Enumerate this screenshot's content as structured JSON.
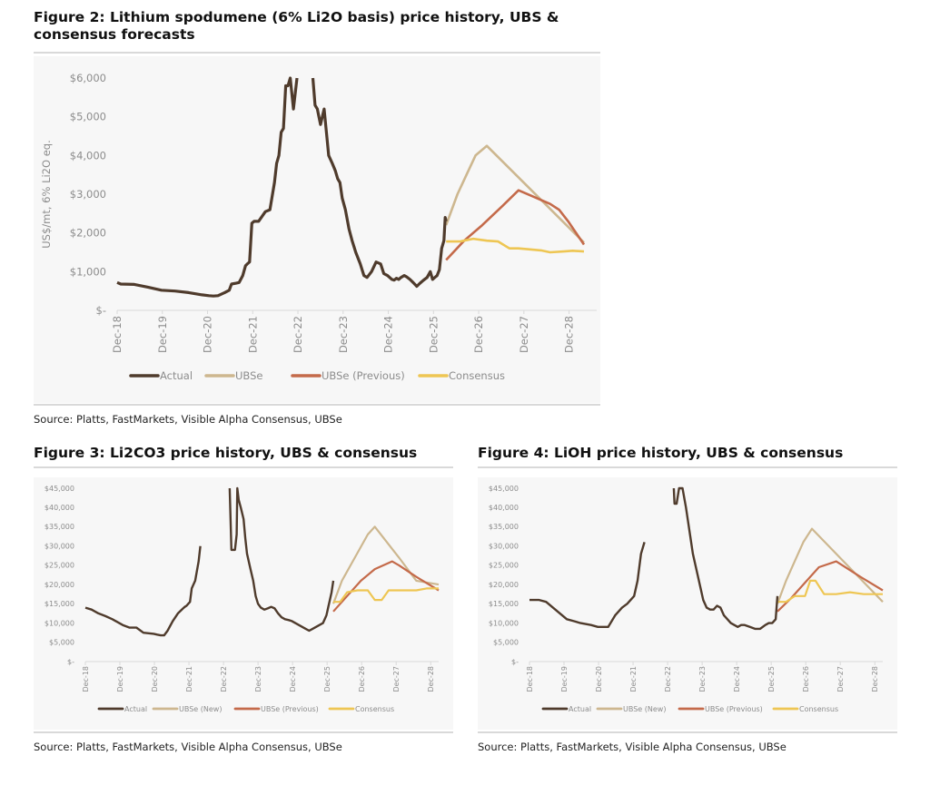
{
  "figures": [
    {
      "title": "Figure 2: Lithium spodumene (6% Li2O basis) price history, UBS & consensus forecasts",
      "source": "Source: Platts, FastMarkets, Visible Alpha Consensus, UBSe"
    },
    {
      "title": "Figure 3: Li2CO3 price history, UBS & consensus",
      "source": "Source: Platts, FastMarkets, Visible Alpha Consensus, UBSe"
    },
    {
      "title": "Figure 4: LiOH price history, UBS & consensus",
      "source": "Source: Platts, FastMarkets, Visible Alpha Consensus, UBSe"
    }
  ],
  "chart_data": [
    {
      "type": "line",
      "title": "Figure 2: Lithium spodumene (6% Li2O basis) price history, UBS & consensus forecasts",
      "xlabel": "",
      "ylabel": "US$/mt, 6% Li2O eq.",
      "ylim": [
        0,
        6000
      ],
      "xlim": [
        2018.92,
        2029.25
      ],
      "yticks": [
        0,
        1000,
        2000,
        3000,
        4000,
        5000,
        6000
      ],
      "ytick_labels": [
        "$-",
        "$1,000",
        "$2,000",
        "$3,000",
        "$4,000",
        "$5,000",
        "$6,000"
      ],
      "xtick_labels": [
        "Dec-18",
        "Dec-19",
        "Dec-20",
        "Dec-21",
        "Dec-22",
        "Dec-23",
        "Dec-24",
        "Dec-25",
        "Dec-26",
        "Dec-27",
        "Dec-28"
      ],
      "grid": false,
      "legend": "bottom",
      "series": [
        {
          "name": "Actual",
          "color": "#4f3b2c",
          "x": [
            2018.92,
            2019.0,
            2019.3,
            2019.6,
            2019.9,
            2020.2,
            2020.5,
            2020.8,
            2020.95,
            2021.05,
            2021.15,
            2021.3,
            2021.4,
            2021.45,
            2021.55,
            2021.62,
            2021.7,
            2021.76,
            2021.8,
            2021.85,
            2021.9,
            2021.95,
            2022.05,
            2022.2,
            2022.3,
            2022.4,
            2022.45,
            2022.5,
            2022.55,
            2022.6,
            2022.65,
            2022.7,
            2022.75,
            2022.82,
            2022.9,
            2023.0,
            2023.25,
            2023.3,
            2023.35,
            2023.42,
            2023.5,
            2023.6,
            2023.68,
            2023.75,
            2023.8,
            2023.85,
            2023.9,
            2023.97,
            2024.05,
            2024.12,
            2024.2,
            2024.3,
            2024.38,
            2024.45,
            2024.55,
            2024.65,
            2024.75,
            2024.82,
            2024.9,
            2024.95,
            2025.0,
            2025.05,
            2025.1,
            2025.15,
            2025.2,
            2025.27,
            2025.32,
            2025.4,
            2025.47,
            2025.55,
            2025.62,
            2025.7,
            2025.78,
            2025.85,
            2025.9,
            2025.95,
            2026.0,
            2026.05,
            2026.1,
            2026.15,
            2026.18,
            2026.2
          ],
          "y": [
            720,
            680,
            670,
            600,
            520,
            500,
            460,
            400,
            380,
            370,
            380,
            460,
            520,
            680,
            700,
            720,
            900,
            1150,
            1200,
            1250,
            2250,
            2300,
            2300,
            2550,
            2600,
            3300,
            3800,
            4000,
            4600,
            4700,
            5800,
            5800,
            6000,
            5200,
            6000,
            null,
            6000,
            5300,
            5200,
            4800,
            5200,
            4000,
            3800,
            3600,
            3400,
            3300,
            2900,
            2600,
            2100,
            1800,
            1500,
            1200,
            900,
            850,
            1000,
            1250,
            1200,
            950,
            900,
            850,
            800,
            780,
            830,
            800,
            850,
            900,
            870,
            800,
            720,
            620,
            700,
            780,
            850,
            1000,
            800,
            850,
            900,
            1050,
            1600,
            1800,
            2400,
            2300
          ]
        },
        {
          "name": "UBSe",
          "color": "#cdb78f",
          "x": [
            2026.2,
            2026.45,
            2026.65,
            2026.85,
            2027.1,
            2029.25
          ],
          "y": [
            2200,
            3000,
            3500,
            4000,
            4250,
            1750
          ]
        },
        {
          "name": "UBSe (Previous)",
          "color": "#c46a4a",
          "x": [
            2026.2,
            2026.6,
            2027.0,
            2027.45,
            2027.8,
            2028.1,
            2028.5,
            2028.7,
            2028.9,
            2029.25
          ],
          "y": [
            1300,
            1800,
            2200,
            2700,
            3100,
            2950,
            2750,
            2600,
            2300,
            1700
          ]
        },
        {
          "name": "Consensus",
          "color": "#eec653",
          "x": [
            2026.2,
            2026.5,
            2026.8,
            2027.1,
            2027.35,
            2027.6,
            2027.8,
            2028.0,
            2028.3,
            2028.5,
            2028.8,
            2029.0,
            2029.25
          ],
          "y": [
            1780,
            1780,
            1850,
            1800,
            1780,
            1600,
            1600,
            1580,
            1550,
            1500,
            1520,
            1540,
            1520
          ]
        }
      ]
    },
    {
      "type": "line",
      "title": "Figure 3: Li2CO3 price history, UBS & consensus",
      "xlabel": "",
      "ylabel": "",
      "ylim": [
        0,
        45000
      ],
      "xlim": [
        2018.92,
        2029.15
      ],
      "yticks": [
        0,
        5000,
        10000,
        15000,
        20000,
        25000,
        30000,
        35000,
        40000,
        45000
      ],
      "ytick_labels": [
        "$-",
        "$5,000",
        "$10,000",
        "$15,000",
        "$20,000",
        "$25,000",
        "$30,000",
        "$35,000",
        "$40,000",
        "$45,000"
      ],
      "xtick_labels": [
        "Dec-18",
        "Dec-19",
        "Dec-20",
        "Dec-21",
        "Dec-22",
        "Dec-23",
        "Dec-24",
        "Dec-25",
        "Dec-26",
        "Dec-27",
        "Dec-28"
      ],
      "grid": false,
      "legend": "bottom",
      "series": [
        {
          "name": "Actual",
          "color": "#4f3b2c",
          "x": [
            2018.92,
            2019.1,
            2019.3,
            2019.5,
            2019.7,
            2019.9,
            2020.0,
            2020.2,
            2020.4,
            2020.6,
            2020.9,
            2021.0,
            2021.1,
            2021.2,
            2021.3,
            2021.45,
            2021.6,
            2021.75,
            2021.8,
            2021.85,
            2021.9,
            2021.95,
            2022.0,
            2022.1,
            2022.2,
            2022.25,
            null,
            2023.1,
            2023.15,
            2023.25,
            2023.3,
            2023.32,
            2023.36,
            2023.42,
            2023.5,
            2023.55,
            2023.6,
            2023.7,
            2023.78,
            2023.85,
            2023.92,
            2024.0,
            2024.1,
            2024.2,
            2024.3,
            2024.4,
            2024.5,
            2024.6,
            2024.7,
            2024.8,
            2024.9,
            2025.0,
            2025.1,
            2025.2,
            2025.3,
            2025.4,
            2025.5,
            2025.6,
            2025.7,
            2025.8,
            2025.9,
            2025.95,
            2026.0,
            2026.05,
            2026.1
          ],
          "y": [
            14000,
            13500,
            12500,
            11800,
            11000,
            10000,
            9500,
            8800,
            8800,
            7500,
            7200,
            7000,
            6800,
            6800,
            8000,
            10500,
            12500,
            13800,
            14200,
            14500,
            15000,
            15500,
            19000,
            21000,
            26000,
            30000,
            null,
            45000,
            29000,
            29000,
            33000,
            45000,
            42000,
            40000,
            37000,
            32000,
            28000,
            24000,
            21000,
            17000,
            15000,
            14000,
            13500,
            13800,
            14200,
            13800,
            12500,
            11500,
            11000,
            10800,
            10500,
            10000,
            9500,
            9000,
            8500,
            8000,
            8500,
            9000,
            9500,
            10000,
            12000,
            14000,
            16000,
            18000,
            21000
          ]
        },
        {
          "name": "UBSe (New)",
          "color": "#cdb78f",
          "x": [
            2026.1,
            2026.35,
            2026.6,
            2026.85,
            2027.1,
            2027.3,
            2028.0,
            2028.5,
            2029.15
          ],
          "y": [
            15000,
            21000,
            25000,
            29000,
            33000,
            35000,
            27000,
            21000,
            20000
          ]
        },
        {
          "name": "UBSe (Previous)",
          "color": "#c46a4a",
          "x": [
            2026.1,
            2026.5,
            2026.9,
            2027.3,
            2027.8,
            2028.0,
            2028.5,
            2029.15
          ],
          "y": [
            13000,
            17000,
            21000,
            24000,
            26000,
            25000,
            22000,
            18500
          ]
        },
        {
          "name": "Consensus",
          "color": "#eec653",
          "x": [
            2026.1,
            2026.3,
            2026.5,
            2026.8,
            2027.1,
            2027.3,
            2027.5,
            2027.7,
            2028.0,
            2028.5,
            2028.8,
            2029.15
          ],
          "y": [
            15500,
            15500,
            18000,
            18500,
            18500,
            16000,
            16000,
            18500,
            18500,
            18500,
            19000,
            19000
          ]
        }
      ]
    },
    {
      "type": "line",
      "title": "Figure 4: LiOH price history, UBS & consensus",
      "xlabel": "",
      "ylabel": "",
      "ylim": [
        0,
        45000
      ],
      "xlim": [
        2018.92,
        2029.15
      ],
      "yticks": [
        0,
        5000,
        10000,
        15000,
        20000,
        25000,
        30000,
        35000,
        40000,
        45000
      ],
      "ytick_labels": [
        "$-",
        "$5,000",
        "$10,000",
        "$15,000",
        "$20,000",
        "$25,000",
        "$30,000",
        "$35,000",
        "$40,000",
        "$45,000"
      ],
      "xtick_labels": [
        "Dec-18",
        "Dec-19",
        "Dec-20",
        "Dec-21",
        "Dec-22",
        "Dec-23",
        "Dec-24",
        "Dec-25",
        "Dec-26",
        "Dec-27",
        "Dec-28"
      ],
      "grid": false,
      "legend": "bottom",
      "series": [
        {
          "name": "Actual",
          "color": "#4f3b2c",
          "x": [
            2018.92,
            2019.2,
            2019.4,
            2019.6,
            2019.8,
            2020.0,
            2020.2,
            2020.4,
            2020.7,
            2020.9,
            2021.1,
            2021.2,
            2021.4,
            2021.6,
            2021.75,
            2021.85,
            2021.95,
            2022.05,
            2022.15,
            2022.25,
            null,
            2023.1,
            2023.12,
            2023.18,
            2023.25,
            2023.35,
            2023.45,
            2023.55,
            2023.65,
            2023.75,
            2023.85,
            2023.95,
            2024.05,
            2024.15,
            2024.25,
            2024.35,
            2024.45,
            2024.55,
            2024.65,
            2024.75,
            2024.85,
            2024.95,
            2025.05,
            2025.15,
            2025.3,
            2025.45,
            2025.6,
            2025.75,
            2025.85,
            2025.95,
            2026.05,
            2026.1
          ],
          "y": [
            16000,
            16000,
            15500,
            14000,
            12500,
            11000,
            10500,
            10000,
            9500,
            9000,
            9000,
            9000,
            12000,
            14000,
            15000,
            16000,
            17000,
            21000,
            28000,
            31000,
            null,
            45000,
            41000,
            41000,
            45000,
            45000,
            40000,
            34000,
            28000,
            24000,
            20000,
            16000,
            14000,
            13500,
            13500,
            14500,
            14000,
            12000,
            11000,
            10000,
            9500,
            9000,
            9500,
            9500,
            9000,
            8500,
            8500,
            9500,
            10000,
            10000,
            11000,
            17000
          ]
        },
        {
          "name": "UBSe (New)",
          "color": "#cdb78f",
          "x": [
            2026.1,
            2026.35,
            2026.6,
            2026.85,
            2027.1,
            2029.15
          ],
          "y": [
            15000,
            21000,
            26000,
            31000,
            34500,
            15500
          ]
        },
        {
          "name": "UBSe (Previous)",
          "color": "#c46a4a",
          "x": [
            2026.1,
            2026.5,
            2026.9,
            2027.3,
            2027.8,
            2028.5,
            2029.15
          ],
          "y": [
            13000,
            16500,
            20500,
            24500,
            26000,
            22000,
            18500
          ]
        },
        {
          "name": "Consensus",
          "color": "#eec653",
          "x": [
            2026.1,
            2026.35,
            2026.6,
            2026.9,
            2027.05,
            2027.2,
            2027.45,
            2027.8,
            2028.2,
            2028.6,
            2029.15
          ],
          "y": [
            15500,
            15500,
            17000,
            17000,
            21000,
            21000,
            17500,
            17500,
            18000,
            17500,
            17500
          ]
        }
      ]
    }
  ]
}
